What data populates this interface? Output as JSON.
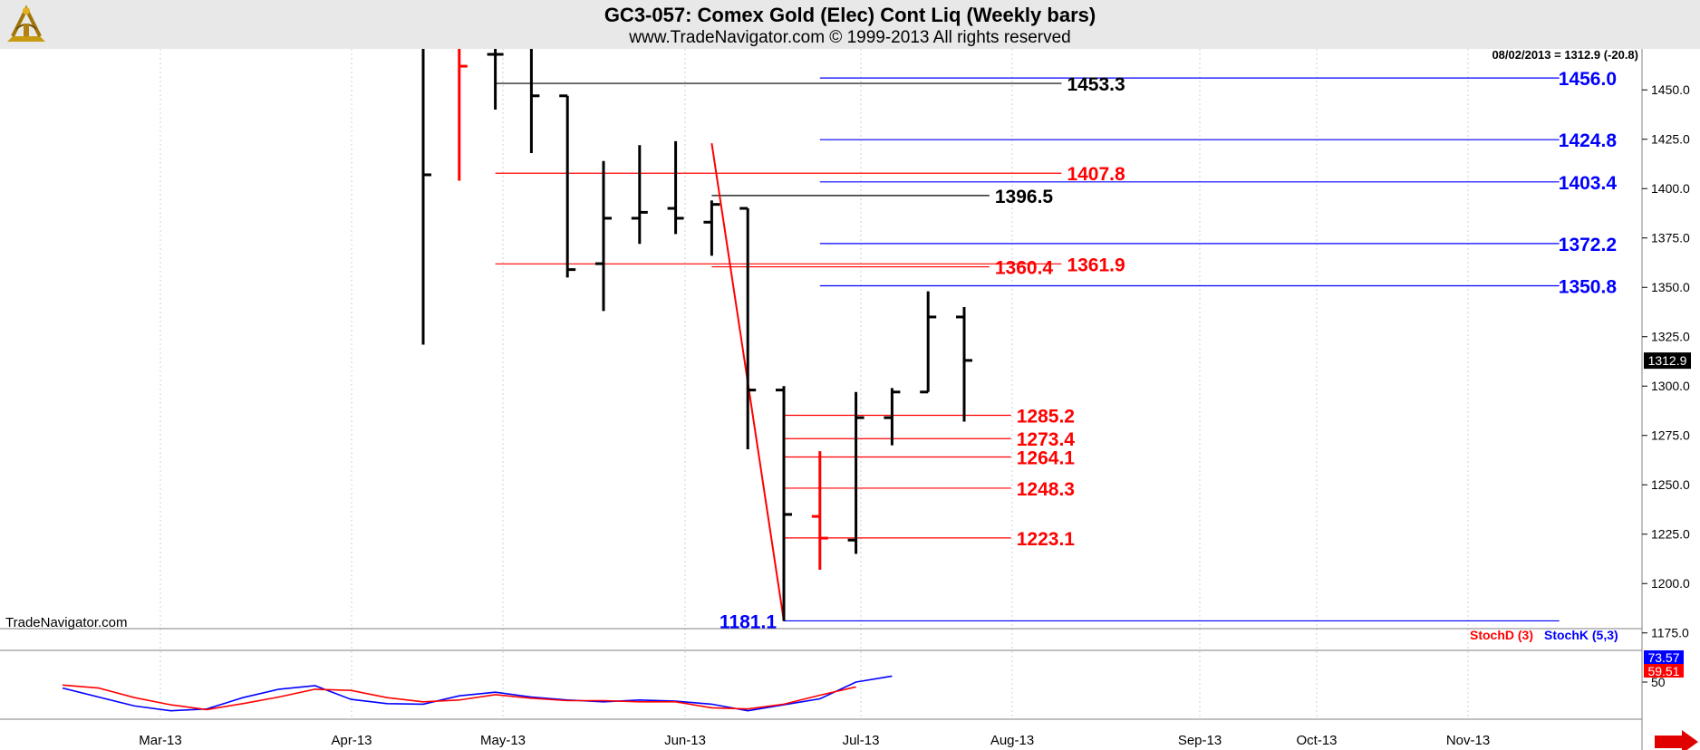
{
  "header": {
    "title": "GC3-057:  Comex Gold (Elec) Cont Liq  (Weekly bars)",
    "subtitle": "www.TradeNavigator.com © 1999-2013 All rights reserved",
    "logo_icon": "sextant-logo-icon"
  },
  "watermark": "TradeNavigator.com",
  "chart_data": [
    {
      "type": "ohlc",
      "price_status": "08/02/2013 = 1312.9 (-20.8)",
      "last_price": "1312.9",
      "ylim": [
        1168,
        1474
      ],
      "y_ticks": [
        "1175.0",
        "1200.0",
        "1225.0",
        "1250.0",
        "1275.0",
        "1300.0",
        "1325.0",
        "1350.0",
        "1375.0",
        "1400.0",
        "1425.0",
        "1450.0"
      ],
      "x_ticks": [
        "Mar-13",
        "Apr-13",
        "May-13",
        "Jun-13",
        "Jul-13",
        "Aug-13",
        "Sep-13",
        "Oct-13",
        "Nov-13"
      ],
      "bars": [
        {
          "week": 0,
          "open": 1600,
          "high": 1600,
          "low": 1321,
          "close": 1407,
          "color": "#000000"
        },
        {
          "week": 1,
          "open": 1600,
          "high": 1600,
          "low": 1404,
          "close": 1462,
          "color": "#ff0000"
        },
        {
          "week": 2,
          "open": 1468,
          "high": 1600,
          "low": 1440,
          "close": 1468,
          "color": "#000000"
        },
        {
          "week": 3,
          "open": 1600,
          "high": 1600,
          "low": 1418,
          "close": 1447,
          "color": "#000000"
        },
        {
          "week": 4,
          "open": 1447,
          "high": 1447,
          "low": 1355,
          "close": 1359,
          "color": "#000000"
        },
        {
          "week": 5,
          "open": 1362,
          "high": 1414,
          "low": 1338,
          "close": 1385,
          "color": "#000000"
        },
        {
          "week": 6,
          "open": 1385,
          "high": 1422,
          "low": 1372,
          "close": 1388,
          "color": "#000000"
        },
        {
          "week": 7,
          "open": 1390,
          "high": 1424,
          "low": 1377,
          "close": 1385,
          "color": "#000000"
        },
        {
          "week": 8,
          "open": 1383,
          "high": 1394,
          "low": 1366,
          "close": 1392,
          "color": "#000000"
        },
        {
          "week": 9,
          "open": 1390,
          "high": 1390,
          "low": 1268,
          "close": 1298,
          "color": "#000000"
        },
        {
          "week": 10,
          "open": 1298,
          "high": 1300,
          "low": 1181,
          "close": 1235,
          "color": "#000000"
        },
        {
          "week": 11,
          "open": 1234,
          "high": 1267,
          "low": 1207,
          "close": 1223,
          "color": "#ff0000"
        },
        {
          "week": 12,
          "open": 1222,
          "high": 1297,
          "low": 1215,
          "close": 1284,
          "color": "#000000"
        },
        {
          "week": 13,
          "open": 1284,
          "high": 1299,
          "low": 1270,
          "close": 1297,
          "color": "#000000"
        },
        {
          "week": 14,
          "open": 1297,
          "high": 1348,
          "low": 1297,
          "close": 1335,
          "color": "#000000"
        },
        {
          "week": 15,
          "open": 1335,
          "high": 1340,
          "low": 1282,
          "close": 1313,
          "color": "#000000"
        }
      ],
      "trendline": {
        "from": {
          "week": 8,
          "price": 1423
        },
        "to": {
          "week": 10,
          "price": 1181
        }
      },
      "levels": [
        {
          "label": "1456.0",
          "value": 1456.0,
          "color": "#0000ff",
          "from_week": 11,
          "to_week": 31.5,
          "label_pos": "right"
        },
        {
          "label": "1453.3",
          "value": 1453.3,
          "color": "#000000",
          "from_week": 2,
          "to_week": 17.7,
          "label_pos": "end"
        },
        {
          "label": "1424.8",
          "value": 1424.8,
          "color": "#0000ff",
          "from_week": 11,
          "to_week": 31.5,
          "label_pos": "right"
        },
        {
          "label": "1407.8",
          "value": 1407.8,
          "color": "#ff0000",
          "from_week": 2,
          "to_week": 17.7,
          "label_pos": "end"
        },
        {
          "label": "1403.4",
          "value": 1403.4,
          "color": "#0000ff",
          "from_week": 11,
          "to_week": 31.5,
          "label_pos": "right"
        },
        {
          "label": "1396.5",
          "value": 1396.5,
          "color": "#000000",
          "from_week": 8,
          "to_week": 15.7,
          "label_pos": "end"
        },
        {
          "label": "1372.2",
          "value": 1372.2,
          "color": "#0000ff",
          "from_week": 11,
          "to_week": 31.5,
          "label_pos": "right"
        },
        {
          "label": "1361.9",
          "value": 1361.9,
          "color": "#ff0000",
          "from_week": 2,
          "to_week": 17.7,
          "label_pos": "end"
        },
        {
          "label": "1360.4",
          "value": 1360.4,
          "color": "#ff0000",
          "from_week": 8,
          "to_week": 15.7,
          "label_pos": "end"
        },
        {
          "label": "1350.8",
          "value": 1350.8,
          "color": "#0000ff",
          "from_week": 11,
          "to_week": 31.5,
          "label_pos": "right"
        },
        {
          "label": "1285.2",
          "value": 1285.2,
          "color": "#ff0000",
          "from_week": 10,
          "to_week": 16.3,
          "label_pos": "end"
        },
        {
          "label": "1273.4",
          "value": 1273.4,
          "color": "#ff0000",
          "from_week": 10,
          "to_week": 16.3,
          "label_pos": "end"
        },
        {
          "label": "1264.1",
          "value": 1264.1,
          "color": "#ff0000",
          "from_week": 10,
          "to_week": 16.3,
          "label_pos": "end"
        },
        {
          "label": "1248.3",
          "value": 1248.3,
          "color": "#ff0000",
          "from_week": 10,
          "to_week": 16.3,
          "label_pos": "end"
        },
        {
          "label": "1223.1",
          "value": 1223.1,
          "color": "#ff0000",
          "from_week": 10,
          "to_week": 16.3,
          "label_pos": "end"
        },
        {
          "label": "1181.1",
          "value": 1181.1,
          "color": "#0000ff",
          "from_week": 10,
          "to_week": 31.5,
          "label_pos": "left"
        }
      ]
    },
    {
      "type": "line",
      "legend": [
        {
          "name": "StochD (3)",
          "color": "#ff0000"
        },
        {
          "name": "StochK (5,3)",
          "color": "#0000ff"
        }
      ],
      "ylim": [
        0,
        100
      ],
      "y_ticks": [
        "50"
      ],
      "series": [
        {
          "name": "StochK (5,3)",
          "color": "#0000ff",
          "last": "73.57",
          "points": [
            [
              -10,
              40
            ],
            [
              -8,
              10
            ],
            [
              -7,
              2
            ],
            [
              -6,
              5
            ],
            [
              -5,
              24
            ],
            [
              -4,
              38
            ],
            [
              -3,
              44
            ],
            [
              -2,
              21
            ],
            [
              -1,
              14
            ],
            [
              0,
              13
            ],
            [
              1,
              27
            ],
            [
              2,
              33
            ],
            [
              3,
              25
            ],
            [
              4,
              20
            ],
            [
              5,
              17
            ],
            [
              6,
              20
            ],
            [
              7,
              18
            ],
            [
              8,
              13
            ],
            [
              9,
              2
            ],
            [
              10,
              12
            ],
            [
              11,
              22
            ],
            [
              12,
              50
            ],
            [
              13,
              60
            ]
          ]
        },
        {
          "name": "StochD (3)",
          "color": "#ff0000",
          "last": "59.51",
          "points": [
            [
              -10,
              45
            ],
            [
              -9,
              40
            ],
            [
              -8,
              24
            ],
            [
              -7,
              12
            ],
            [
              -6,
              4
            ],
            [
              -5,
              14
            ],
            [
              -4,
              25
            ],
            [
              -3,
              38
            ],
            [
              -2,
              36
            ],
            [
              -1,
              24
            ],
            [
              0,
              17
            ],
            [
              1,
              20
            ],
            [
              2,
              29
            ],
            [
              3,
              23
            ],
            [
              4,
              19
            ],
            [
              5,
              19
            ],
            [
              6,
              17
            ],
            [
              7,
              17
            ],
            [
              8,
              7
            ],
            [
              9,
              5
            ],
            [
              10,
              13
            ],
            [
              11,
              28
            ],
            [
              12,
              42
            ]
          ]
        }
      ]
    }
  ]
}
